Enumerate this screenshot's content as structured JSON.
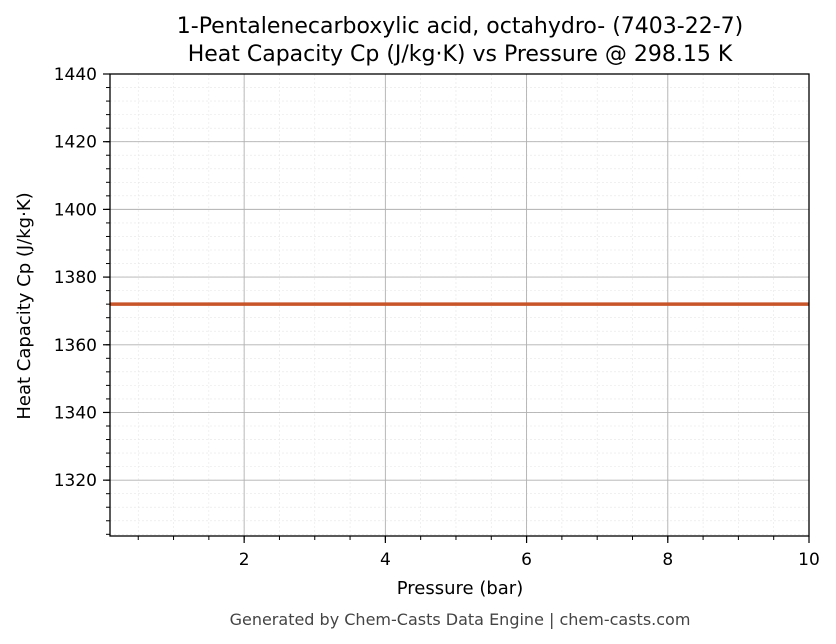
{
  "chart_data": {
    "type": "line",
    "title": "1-Pentalenecarboxylic acid, octahydro- (7403-22-7)",
    "subtitle": "Heat Capacity Cp (J/kg·K) vs Pressure @ 298.15 K",
    "xlabel": "Pressure (bar)",
    "ylabel": "Heat Capacity Cp (J/kg·K)",
    "xlim": [
      0.1,
      10
    ],
    "ylim": [
      1303.5,
      1440
    ],
    "x_ticks": [
      2,
      4,
      6,
      8,
      10
    ],
    "x_tick_labels": [
      "2",
      "4",
      "6",
      "8",
      "10"
    ],
    "y_ticks": [
      1320,
      1340,
      1360,
      1380,
      1400,
      1420,
      1440
    ],
    "y_tick_labels": [
      "1320",
      "1340",
      "1360",
      "1380",
      "1400",
      "1420",
      "1440"
    ],
    "x_minor_step": 0.5,
    "y_minor_step": 4,
    "grid": true,
    "legend": "none",
    "series": [
      {
        "color": "#c8552a",
        "x": [
          0.1,
          10
        ],
        "y": [
          1372,
          1372
        ]
      }
    ]
  },
  "footer": {
    "text": "Generated by Chem-Casts Data Engine | chem-casts.com"
  }
}
